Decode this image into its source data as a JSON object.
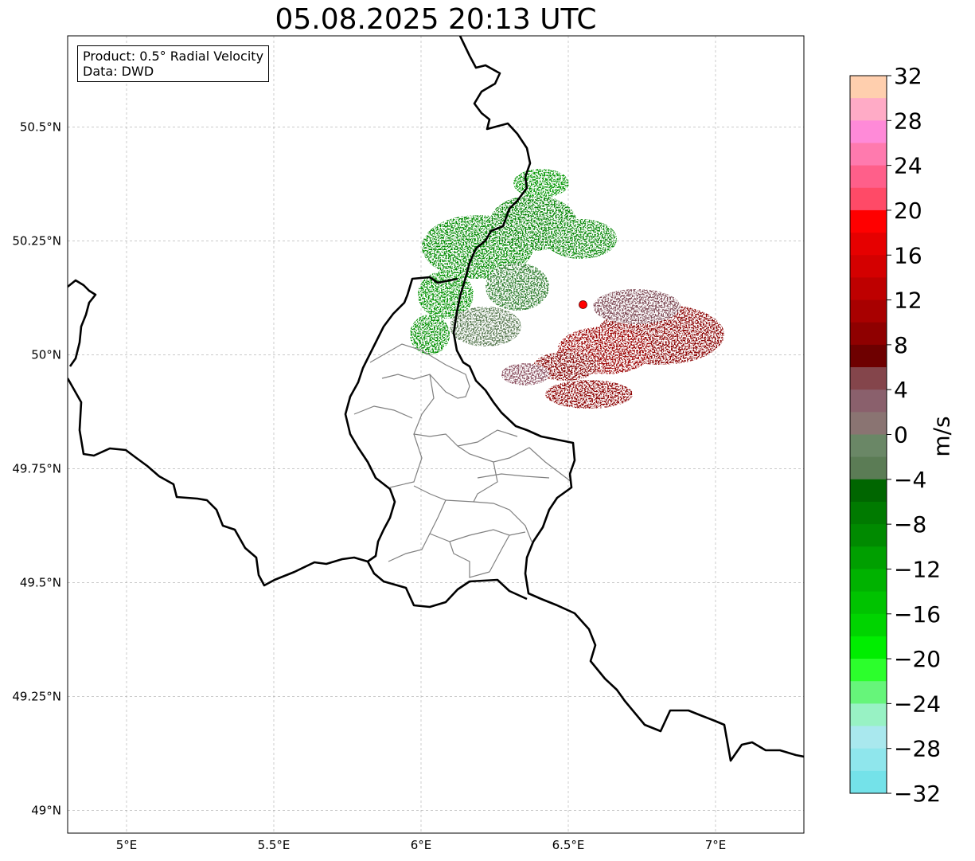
{
  "title": "05.08.2025 20:13 UTC",
  "info_box": {
    "product": "Product: 0.5° Radial Velocity",
    "data_source": "Data: DWD"
  },
  "map": {
    "extent": {
      "lon_min": 4.8,
      "lon_max": 7.3,
      "lat_min": 48.95,
      "lat_max": 50.7
    },
    "lat_ticks": [
      {
        "value": 50.5,
        "label": "50.5°N"
      },
      {
        "value": 50.25,
        "label": "50.25°N"
      },
      {
        "value": 50.0,
        "label": "50°N"
      },
      {
        "value": 49.75,
        "label": "49.75°N"
      },
      {
        "value": 49.5,
        "label": "49.5°N"
      },
      {
        "value": 49.25,
        "label": "49.25°N"
      },
      {
        "value": 49.0,
        "label": "49°N"
      }
    ],
    "lon_ticks": [
      {
        "value": 5.0,
        "label": "5°E"
      },
      {
        "value": 5.5,
        "label": "5.5°E"
      },
      {
        "value": 6.0,
        "label": "6°E"
      },
      {
        "value": 6.5,
        "label": "6.5°E"
      },
      {
        "value": 7.0,
        "label": "7°E"
      }
    ],
    "radar_site": {
      "lon": 6.55,
      "lat": 50.11,
      "color": "#ff0000"
    },
    "gridlines": true
  },
  "colorbar": {
    "label": "m/s",
    "min": -32,
    "max": 32,
    "ticks": [
      "32",
      "28",
      "24",
      "20",
      "16",
      "12",
      "8",
      "4",
      "0",
      "−4",
      "−8",
      "−12",
      "−16",
      "−20",
      "−24",
      "−28",
      "−32"
    ],
    "tick_values": [
      32,
      28,
      24,
      20,
      16,
      12,
      8,
      4,
      0,
      -4,
      -8,
      -12,
      -16,
      -20,
      -24,
      -28,
      -32
    ],
    "colors_top_to_bottom": [
      "#ffcfae",
      "#ffabc6",
      "#ff8ad8",
      "#ff7aae",
      "#ff5f8a",
      "#ff4a67",
      "#ff0000",
      "#e60000",
      "#d40000",
      "#be0000",
      "#a80000",
      "#8f0000",
      "#6e0000",
      "#84454b",
      "#8a606c",
      "#8a7472",
      "#6a8766",
      "#5b7c55",
      "#006600",
      "#007a00",
      "#008a00",
      "#009f00",
      "#00b200",
      "#00c300",
      "#00d400",
      "#00ee00",
      "#2cff2c",
      "#66f57a",
      "#98f2c4",
      "#a9e8ee",
      "#8fe6ec",
      "#74e2e9"
    ]
  }
}
